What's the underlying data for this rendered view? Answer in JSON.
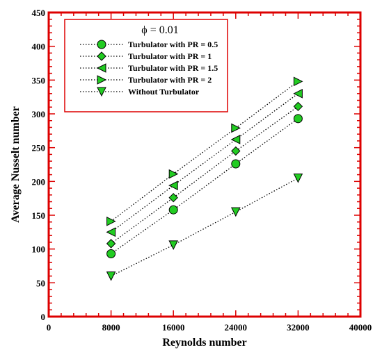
{
  "chart_data": {
    "type": "line",
    "xlabel": "Reynolds number",
    "ylabel": "Average Nusselt number",
    "xlim": [
      0,
      40000
    ],
    "ylim": [
      0,
      450
    ],
    "x_ticks": [
      0,
      8000,
      16000,
      24000,
      32000,
      40000
    ],
    "y_ticks": [
      0,
      50,
      100,
      150,
      200,
      250,
      300,
      350,
      400,
      450
    ],
    "legend_title": "ϕ = 0.01",
    "legend_position": "top-left",
    "grid": false,
    "frame_color": "#dd0000",
    "marker_fill": "#22cc22",
    "x": [
      8000,
      16000,
      24000,
      32000
    ],
    "series": [
      {
        "name": "Turbulator with PR = 0.5",
        "marker": "circle",
        "values": [
          93,
          158,
          226,
          293
        ]
      },
      {
        "name": "Turbulator with PR = 1",
        "marker": "diamond",
        "values": [
          108,
          176,
          245,
          311
        ]
      },
      {
        "name": "Turbulator with PR = 1.5",
        "marker": "triangle-left",
        "values": [
          125,
          194,
          262,
          330
        ]
      },
      {
        "name": "Turbulator with PR = 2",
        "marker": "triangle-right",
        "values": [
          141,
          211,
          279,
          348
        ]
      },
      {
        "name": "Without Turbulator",
        "marker": "triangle-down",
        "values": [
          60,
          106,
          155,
          205
        ]
      }
    ]
  }
}
